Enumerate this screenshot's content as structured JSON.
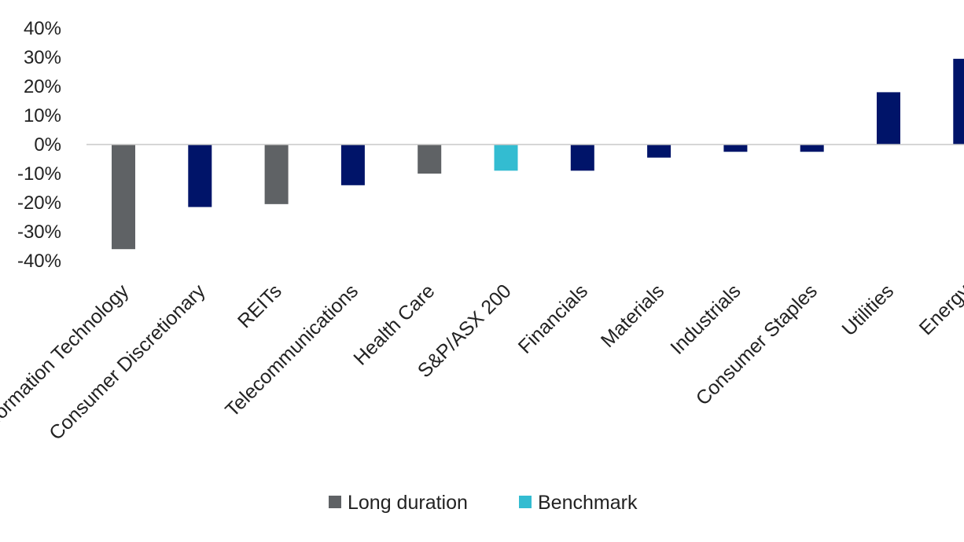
{
  "chart_data": {
    "type": "bar",
    "categories": [
      "Information Technology",
      "Consumer Discretionary",
      "REITs",
      "Telecommunications",
      "Health Care",
      "S&P/ASX 200",
      "Financials",
      "Materials",
      "Industrials",
      "Consumer Staples",
      "Utilities",
      "Energy"
    ],
    "values": [
      -36,
      -21.5,
      -20.5,
      -14,
      -10,
      -9,
      -9,
      -4.5,
      -2.5,
      -2.5,
      18,
      29.5
    ],
    "groups": [
      "long_duration",
      "other",
      "long_duration",
      "other",
      "long_duration",
      "benchmark",
      "other",
      "other",
      "other",
      "other",
      "other",
      "other"
    ],
    "ylim": [
      -40,
      40
    ],
    "yticks": [
      40,
      30,
      20,
      10,
      0,
      -10,
      -20,
      -30,
      -40
    ],
    "ytick_format": "%",
    "colors": {
      "long_duration": "#5f6265",
      "benchmark": "#33bcd1",
      "other": "#001469"
    },
    "legend": {
      "position": "bottom",
      "entries": [
        {
          "key": "long_duration",
          "label": "Long duration"
        },
        {
          "key": "benchmark",
          "label": "Benchmark"
        }
      ]
    },
    "grid": false,
    "zero_line_color": "#c8c8c8"
  }
}
